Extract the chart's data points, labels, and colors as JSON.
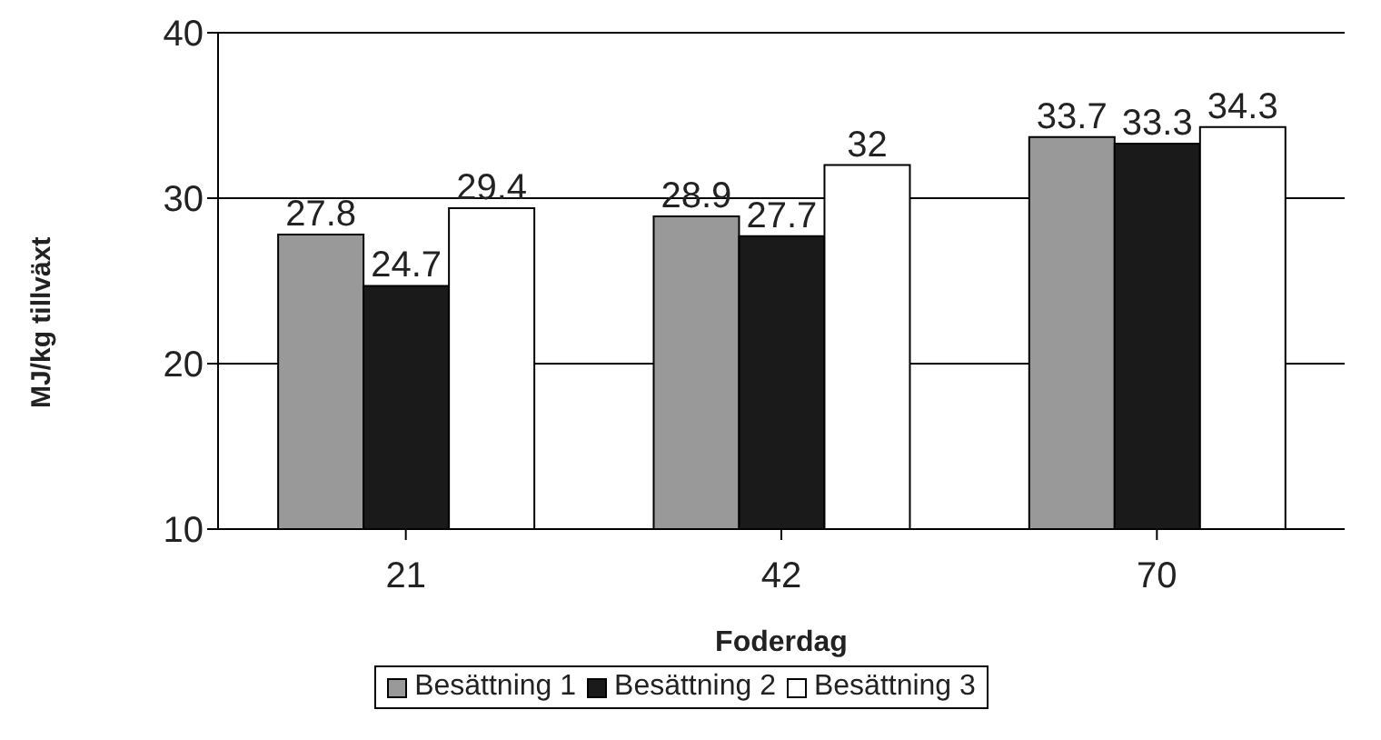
{
  "chart_data": {
    "type": "bar",
    "xlabel": "Foderdag",
    "ylabel": "MJ/kg tillväxt",
    "categories": [
      "21",
      "42",
      "70"
    ],
    "series": [
      {
        "name": "Besättning 1",
        "color": "#999999",
        "values": [
          27.8,
          28.9,
          33.7
        ]
      },
      {
        "name": "Besättning 2",
        "color": "#1a1a1a",
        "values": [
          24.7,
          27.7,
          33.3
        ]
      },
      {
        "name": "Besättning 3",
        "color": "#ffffff",
        "values": [
          29.4,
          32,
          34.3
        ]
      }
    ],
    "ylim": [
      10,
      40
    ],
    "yticks": [
      10,
      20,
      30,
      40
    ],
    "grid": "y",
    "legend": "bottom",
    "data_labels": true
  }
}
